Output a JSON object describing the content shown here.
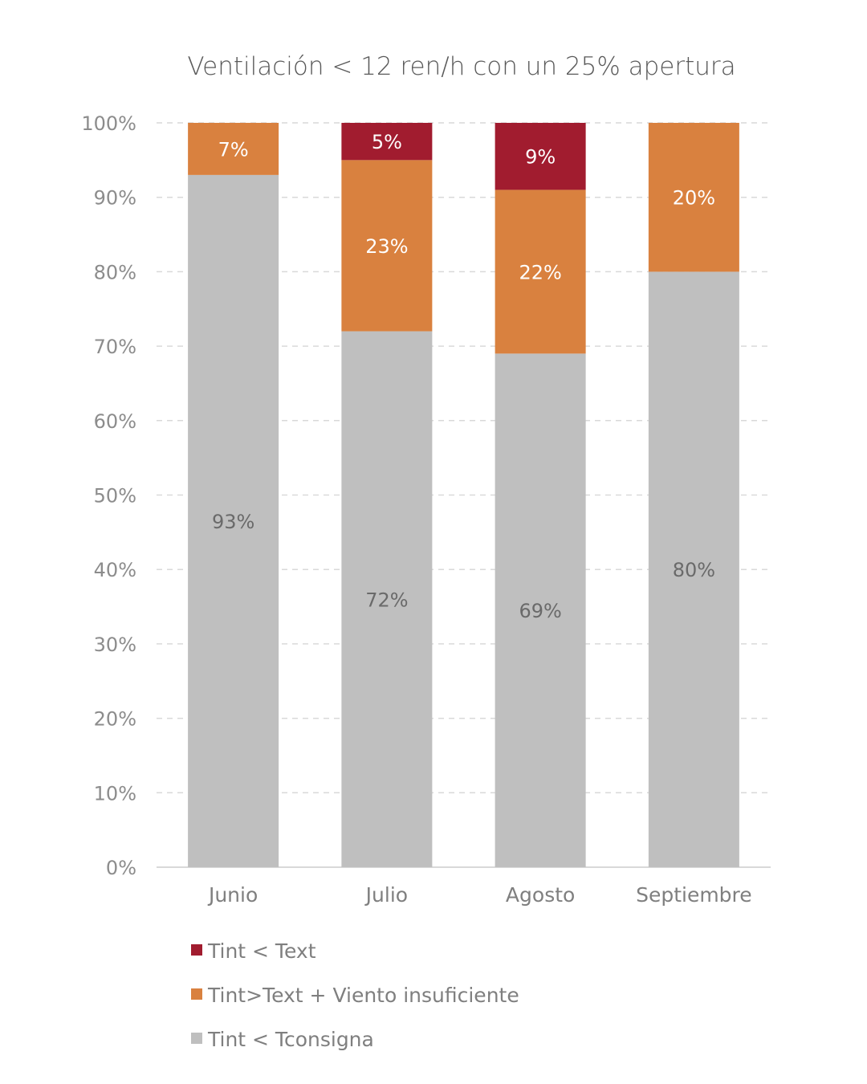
{
  "chart_data": {
    "type": "bar",
    "stacked": true,
    "title": "Ventilación < 12 ren/h con un 25% apertura",
    "categories": [
      "Junio",
      "Julio",
      "Agosto",
      "Septiembre"
    ],
    "series": [
      {
        "name": "Tint < Tconsigna",
        "color": "#bfbfbf",
        "values": [
          93,
          72,
          69,
          80
        ],
        "labels": [
          "93%",
          "72%",
          "69%",
          "80%"
        ]
      },
      {
        "name": "Tint>Text + Viento insuficiente",
        "color": "#d9813f",
        "values": [
          7,
          23,
          22,
          20
        ],
        "labels": [
          "7%",
          "23%",
          "22%",
          "20%"
        ]
      },
      {
        "name": "Tint < Text",
        "color": "#a11c2f",
        "values": [
          0,
          5,
          9,
          0
        ],
        "labels": [
          "",
          "5%",
          "9%",
          ""
        ]
      }
    ],
    "ylim": [
      0,
      100
    ],
    "yticks": [
      "0%",
      "10%",
      "20%",
      "30%",
      "40%",
      "50%",
      "60%",
      "70%",
      "80%",
      "90%",
      "100%"
    ],
    "grid": true,
    "legend_position": "bottom-left",
    "legend_order": [
      "Tint < Text",
      "Tint>Text + Viento insuficiente",
      "Tint < Tconsigna"
    ]
  }
}
